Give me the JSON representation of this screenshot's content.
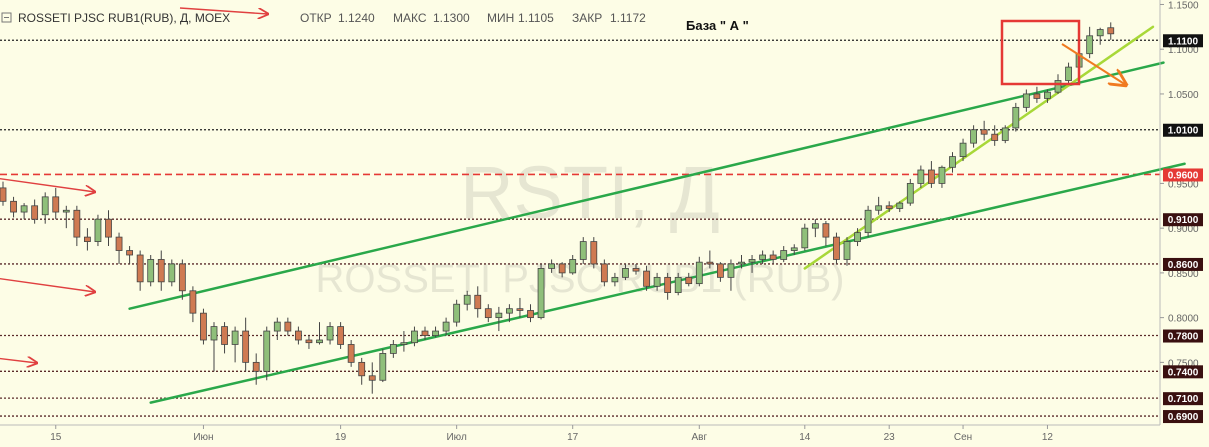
{
  "header": {
    "symbol": "ROSSETI PJSC RUB1(RUB), Д, MOEX",
    "open_label": "ОТКР",
    "open": "1.1240",
    "high_label": "МАКС",
    "high": "1.1300",
    "low_label": "МИН",
    "low": "1.1105",
    "close_label": "ЗАКР",
    "close": "1.1172",
    "note": "База  \" А \""
  },
  "watermark": {
    "line1": "RSTI, Д",
    "line2": "ROSSETI PJSC RUB1 (RUB)"
  },
  "chart_data": {
    "type": "candlestick",
    "y_ticks": [
      "1.1500",
      "1.1000",
      "1.0500",
      "0.9500",
      "0.9000",
      "0.8500",
      "0.8000",
      "0.7500"
    ],
    "ylim": [
      0.68,
      1.155
    ],
    "x_ticks": [
      "15",
      "Июн",
      "19",
      "Июл",
      "17",
      "Авг",
      "14",
      "23",
      "Сен",
      "12"
    ],
    "levels": [
      {
        "value": 1.11,
        "label": "1.1100",
        "style": "dotted",
        "color": "#222222"
      },
      {
        "value": 1.01,
        "label": "1.0100",
        "style": "dotted",
        "color": "#222222"
      },
      {
        "value": 0.96,
        "label": "0.9600",
        "style": "dashed",
        "color": "#e53935"
      },
      {
        "value": 0.91,
        "label": "0.9100",
        "style": "dotted",
        "color": "#5a2a2a"
      },
      {
        "value": 0.86,
        "label": "0.8600",
        "style": "dotted",
        "color": "#5a2a2a"
      },
      {
        "value": 0.78,
        "label": "0.7800",
        "style": "dotted",
        "color": "#5a2a2a"
      },
      {
        "value": 0.74,
        "label": "0.7400",
        "style": "dotted",
        "color": "#5a2a2a"
      },
      {
        "value": 0.71,
        "label": "0.7100",
        "style": "dotted",
        "color": "#5a2a2a"
      },
      {
        "value": 0.69,
        "label": "0.6900",
        "style": "dotted",
        "color": "#5a2a2a"
      }
    ],
    "candles": [
      [
        0.945,
        0.952,
        0.925,
        0.93
      ],
      [
        0.93,
        0.935,
        0.912,
        0.918
      ],
      [
        0.918,
        0.928,
        0.91,
        0.925
      ],
      [
        0.925,
        0.932,
        0.905,
        0.91
      ],
      [
        0.915,
        0.94,
        0.905,
        0.935
      ],
      [
        0.935,
        0.945,
        0.91,
        0.918
      ],
      [
        0.918,
        0.925,
        0.9,
        0.92
      ],
      [
        0.92,
        0.925,
        0.88,
        0.89
      ],
      [
        0.89,
        0.9,
        0.875,
        0.885
      ],
      [
        0.885,
        0.915,
        0.88,
        0.91
      ],
      [
        0.91,
        0.92,
        0.88,
        0.89
      ],
      [
        0.89,
        0.895,
        0.86,
        0.875
      ],
      [
        0.875,
        0.88,
        0.86,
        0.87
      ],
      [
        0.87,
        0.875,
        0.83,
        0.84
      ],
      [
        0.84,
        0.87,
        0.835,
        0.865
      ],
      [
        0.865,
        0.875,
        0.83,
        0.84
      ],
      [
        0.84,
        0.865,
        0.835,
        0.86
      ],
      [
        0.86,
        0.865,
        0.82,
        0.83
      ],
      [
        0.83,
        0.835,
        0.795,
        0.805
      ],
      [
        0.805,
        0.81,
        0.77,
        0.775
      ],
      [
        0.775,
        0.795,
        0.74,
        0.79
      ],
      [
        0.79,
        0.795,
        0.76,
        0.77
      ],
      [
        0.77,
        0.79,
        0.75,
        0.785
      ],
      [
        0.785,
        0.8,
        0.74,
        0.75
      ],
      [
        0.75,
        0.76,
        0.725,
        0.74
      ],
      [
        0.74,
        0.79,
        0.73,
        0.785
      ],
      [
        0.785,
        0.8,
        0.775,
        0.795
      ],
      [
        0.795,
        0.8,
        0.78,
        0.785
      ],
      [
        0.785,
        0.79,
        0.77,
        0.775
      ],
      [
        0.775,
        0.78,
        0.765,
        0.772
      ],
      [
        0.772,
        0.795,
        0.77,
        0.775
      ],
      [
        0.775,
        0.795,
        0.77,
        0.79
      ],
      [
        0.79,
        0.795,
        0.765,
        0.77
      ],
      [
        0.77,
        0.775,
        0.745,
        0.75
      ],
      [
        0.75,
        0.755,
        0.725,
        0.735
      ],
      [
        0.735,
        0.75,
        0.715,
        0.73
      ],
      [
        0.73,
        0.765,
        0.728,
        0.76
      ],
      [
        0.76,
        0.775,
        0.755,
        0.77
      ],
      [
        0.77,
        0.785,
        0.762,
        0.772
      ],
      [
        0.772,
        0.79,
        0.768,
        0.785
      ],
      [
        0.785,
        0.79,
        0.775,
        0.78
      ],
      [
        0.78,
        0.79,
        0.778,
        0.785
      ],
      [
        0.785,
        0.8,
        0.78,
        0.795
      ],
      [
        0.795,
        0.82,
        0.79,
        0.815
      ],
      [
        0.815,
        0.83,
        0.808,
        0.825
      ],
      [
        0.825,
        0.835,
        0.8,
        0.81
      ],
      [
        0.81,
        0.815,
        0.795,
        0.8
      ],
      [
        0.8,
        0.812,
        0.785,
        0.805
      ],
      [
        0.805,
        0.815,
        0.795,
        0.81
      ],
      [
        0.81,
        0.822,
        0.8,
        0.808
      ],
      [
        0.808,
        0.815,
        0.795,
        0.8
      ],
      [
        0.8,
        0.86,
        0.798,
        0.855
      ],
      [
        0.855,
        0.865,
        0.85,
        0.86
      ],
      [
        0.86,
        0.862,
        0.845,
        0.85
      ],
      [
        0.85,
        0.87,
        0.848,
        0.865
      ],
      [
        0.865,
        0.89,
        0.86,
        0.885
      ],
      [
        0.885,
        0.89,
        0.855,
        0.86
      ],
      [
        0.86,
        0.865,
        0.835,
        0.84
      ],
      [
        0.84,
        0.85,
        0.835,
        0.845
      ],
      [
        0.845,
        0.86,
        0.842,
        0.855
      ],
      [
        0.855,
        0.86,
        0.848,
        0.852
      ],
      [
        0.852,
        0.858,
        0.83,
        0.835
      ],
      [
        0.835,
        0.85,
        0.83,
        0.845
      ],
      [
        0.845,
        0.85,
        0.82,
        0.828
      ],
      [
        0.828,
        0.85,
        0.825,
        0.845
      ],
      [
        0.845,
        0.85,
        0.835,
        0.838
      ],
      [
        0.838,
        0.868,
        0.835,
        0.862
      ],
      [
        0.862,
        0.875,
        0.855,
        0.86
      ],
      [
        0.86,
        0.862,
        0.84,
        0.845
      ],
      [
        0.845,
        0.865,
        0.83,
        0.86
      ],
      [
        0.86,
        0.87,
        0.855,
        0.862
      ],
      [
        0.862,
        0.87,
        0.85,
        0.865
      ],
      [
        0.865,
        0.875,
        0.86,
        0.87
      ],
      [
        0.87,
        0.875,
        0.86,
        0.865
      ],
      [
        0.865,
        0.88,
        0.862,
        0.875
      ],
      [
        0.875,
        0.882,
        0.87,
        0.878
      ],
      [
        0.878,
        0.905,
        0.875,
        0.9
      ],
      [
        0.9,
        0.91,
        0.89,
        0.905
      ],
      [
        0.905,
        0.908,
        0.88,
        0.89
      ],
      [
        0.89,
        0.895,
        0.86,
        0.865
      ],
      [
        0.865,
        0.89,
        0.858,
        0.885
      ],
      [
        0.885,
        0.9,
        0.88,
        0.895
      ],
      [
        0.895,
        0.925,
        0.89,
        0.92
      ],
      [
        0.92,
        0.935,
        0.915,
        0.925
      ],
      [
        0.925,
        0.93,
        0.918,
        0.922
      ],
      [
        0.922,
        0.93,
        0.918,
        0.928
      ],
      [
        0.928,
        0.955,
        0.925,
        0.95
      ],
      [
        0.95,
        0.97,
        0.945,
        0.965
      ],
      [
        0.965,
        0.975,
        0.945,
        0.95
      ],
      [
        0.95,
        0.97,
        0.945,
        0.968
      ],
      [
        0.968,
        0.985,
        0.962,
        0.98
      ],
      [
        0.98,
        1.0,
        0.975,
        0.995
      ],
      [
        0.995,
        1.015,
        0.99,
        1.01
      ],
      [
        1.01,
        1.02,
        0.998,
        1.005
      ],
      [
        1.005,
        1.015,
        0.992,
        0.998
      ],
      [
        0.998,
        1.015,
        0.995,
        1.012
      ],
      [
        1.012,
        1.04,
        1.008,
        1.035
      ],
      [
        1.035,
        1.055,
        1.03,
        1.05
      ],
      [
        1.05,
        1.058,
        1.04,
        1.045
      ],
      [
        1.045,
        1.055,
        1.04,
        1.052
      ],
      [
        1.052,
        1.072,
        1.05,
        1.065
      ],
      [
        1.065,
        1.085,
        1.06,
        1.08
      ],
      [
        1.08,
        1.1,
        1.075,
        1.095
      ],
      [
        1.095,
        1.125,
        1.09,
        1.115
      ],
      [
        1.115,
        1.124,
        1.105,
        1.122
      ],
      [
        1.124,
        1.13,
        1.1105,
        1.1172
      ]
    ],
    "trendlines": [
      {
        "from": [
          12,
          0.81
        ],
        "to": [
          110,
          1.085
        ],
        "color": "#2aa84a"
      },
      {
        "from": [
          14,
          0.705
        ],
        "to": [
          112,
          0.972
        ],
        "color": "#2aa84a"
      },
      {
        "from": [
          76,
          0.855
        ],
        "to": [
          109,
          1.125
        ],
        "color": "#a8d838"
      }
    ],
    "up_color": "#8fbf7a",
    "down_color": "#cf7a52",
    "highlight_box_color": "#e53935",
    "arrow_color": "#e04040",
    "forecast_arrow_color": "#f07a20"
  }
}
